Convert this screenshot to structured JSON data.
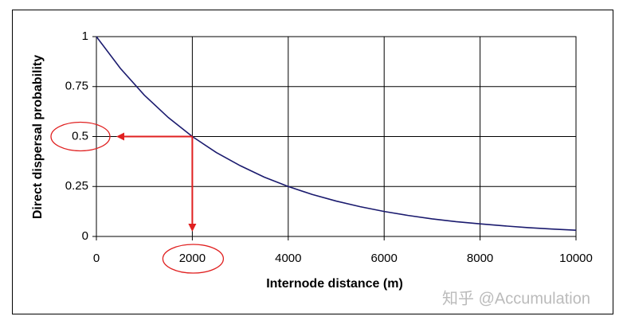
{
  "chart_data": {
    "type": "line",
    "x_label": "Internode distance (m)",
    "y_label": "Direct dispersal probability",
    "x": [
      0,
      500,
      1000,
      1500,
      2000,
      2500,
      3000,
      3500,
      4000,
      4500,
      5000,
      5500,
      6000,
      6500,
      7000,
      7500,
      8000,
      8500,
      9000,
      9500,
      10000
    ],
    "series": [
      {
        "color": "#1a1a6e",
        "values": [
          1,
          0.841,
          0.707,
          0.595,
          0.5,
          0.42,
          0.354,
          0.297,
          0.25,
          0.21,
          0.177,
          0.149,
          0.125,
          0.105,
          0.088,
          0.074,
          0.063,
          0.053,
          0.044,
          0.037,
          0.031
        ]
      }
    ],
    "xlim": [
      0,
      10000
    ],
    "xticks": [
      0,
      2000,
      4000,
      6000,
      8000,
      10000
    ],
    "ylim": [
      0,
      1
    ],
    "yticks": [
      0,
      0.25,
      0.5,
      0.75,
      1
    ],
    "grid": true,
    "highlight_point": {
      "x": 2000,
      "y": 0.5,
      "color": "#e02020"
    }
  },
  "watermark": "知乎 @Accumulation"
}
